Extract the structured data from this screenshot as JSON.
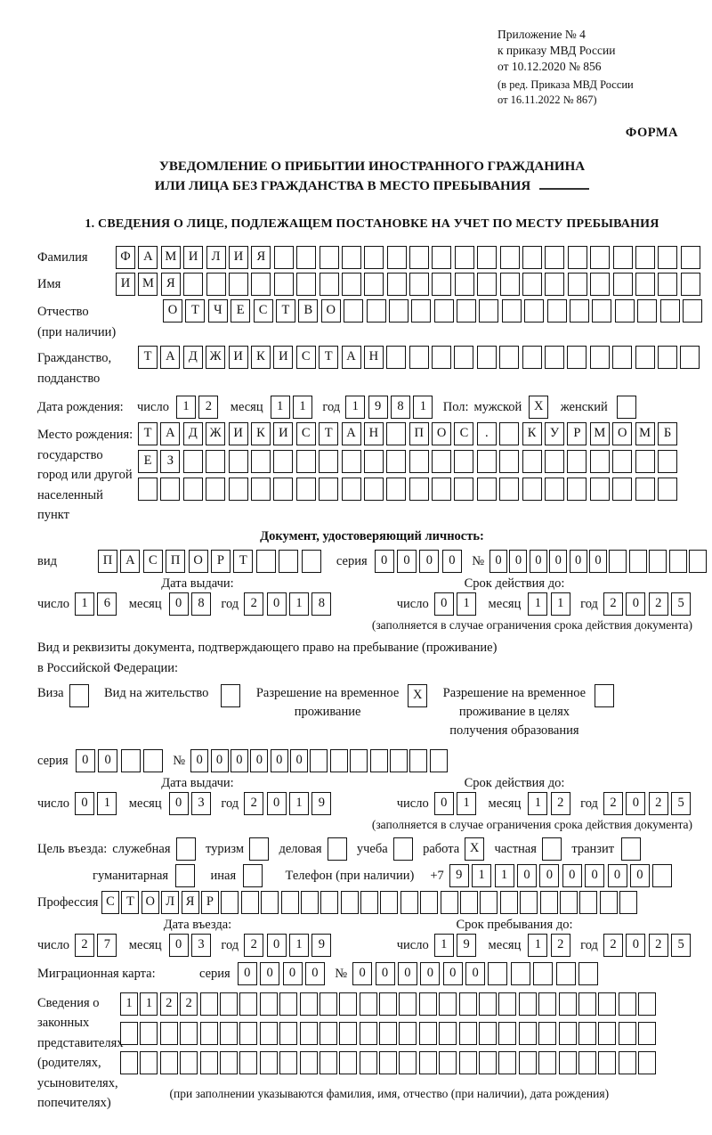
{
  "header": {
    "appendix": [
      "Приложение № 4",
      "к приказу МВД России",
      "от 10.12.2020 № 856"
    ],
    "amendment": [
      "(в ред. Приказа МВД России",
      "от 16.11.2022 № 867)"
    ],
    "form_label": "ФОРМА"
  },
  "title": {
    "line1": "УВЕДОМЛЕНИЕ О ПРИБЫТИИ ИНОСТРАННОГО ГРАЖДАНИНА",
    "line2": "ИЛИ ЛИЦА БЕЗ ГРАЖДАНСТВА В МЕСТО ПРЕБЫВАНИЯ"
  },
  "section1": {
    "heading": "1. СВЕДЕНИЯ О ЛИЦЕ, ПОДЛЕЖАЩЕМ ПОСТАНОВКЕ НА УЧЕТ ПО МЕСТУ ПРЕБЫВАНИЯ"
  },
  "date_labels": {
    "day": "число",
    "month": "месяц",
    "year": "год"
  },
  "person": {
    "surname": {
      "label": "Фамилия",
      "cells": {
        "v": "ФАМИЛИЯ",
        "n": 26
      }
    },
    "name": {
      "label": "Имя",
      "cells": {
        "v": "ИМЯ",
        "n": 26
      }
    },
    "patronymic": {
      "label1": "Отчество",
      "label2": "(при наличии)",
      "cells": {
        "v": "ОТЧЕСТВО",
        "n": 24
      }
    },
    "citizenship": {
      "label1": "Гражданство,",
      "label2": "подданство",
      "cells": {
        "v": "ТАДЖИКИСТАН",
        "n": 25
      }
    },
    "birth_date": {
      "label": "Дата рождения:",
      "day": {
        "v": "12",
        "n": 2
      },
      "month": {
        "v": "11",
        "n": 2
      },
      "year": {
        "v": "1981",
        "n": 4
      }
    },
    "sex": {
      "label": "Пол:",
      "male_label": "мужской",
      "male": {
        "v": "X",
        "n": 1
      },
      "female_label": "женский",
      "female": {
        "v": "",
        "n": 1
      }
    },
    "birth_place": {
      "label_lines": [
        "Место рождения:",
        "государство",
        "город или другой",
        "населенный пункт"
      ],
      "row1": {
        "v": "ТАДЖИКИСТАН ПОС. КУРМОМБ",
        "n": 24
      },
      "row2": {
        "v": "ЕЗ",
        "n": 24
      },
      "row3": {
        "v": "",
        "n": 24
      }
    }
  },
  "identity_doc": {
    "heading": "Документ, удостоверяющий личность:",
    "kind": {
      "label": "вид",
      "cells": {
        "v": "ПАСПОРТ",
        "n": 10
      }
    },
    "series": {
      "label": "серия",
      "cells": {
        "v": "0000",
        "n": 4
      }
    },
    "number": {
      "label": "№",
      "cells": {
        "v": "000000",
        "n": 11
      }
    },
    "issue": {
      "heading": "Дата выдачи:",
      "day": {
        "v": "16",
        "n": 2
      },
      "month": {
        "v": "08",
        "n": 2
      },
      "year": {
        "v": "2018",
        "n": 4
      }
    },
    "valid": {
      "heading": "Срок действия до:",
      "day": {
        "v": "01",
        "n": 2
      },
      "month": {
        "v": "11",
        "n": 2
      },
      "year": {
        "v": "2025",
        "n": 4
      }
    },
    "note": "(заполняется в случае ограничения срока действия документа)"
  },
  "residence_doc": {
    "intro1": "Вид и реквизиты документа, подтверждающего право на пребывание (проживание)",
    "intro2": "в Российской Федерации:",
    "options": [
      {
        "label_lines": [
          "Виза"
        ],
        "box": {
          "v": "",
          "n": 1
        }
      },
      {
        "label_lines": [
          "Вид на жительство"
        ],
        "box": {
          "v": "",
          "n": 1
        }
      },
      {
        "label_lines": [
          "Разрешение на временное",
          "проживание"
        ],
        "box": {
          "v": "X",
          "n": 1
        }
      },
      {
        "label_lines": [
          "Разрешение на временное",
          "проживание в целях",
          "получения образования"
        ],
        "box": {
          "v": "",
          "n": 1
        }
      }
    ],
    "series": {
      "label": "серия",
      "cells": {
        "v": "00",
        "n": 4
      }
    },
    "number": {
      "label": "№",
      "cells": {
        "v": "000000",
        "n": 13
      }
    },
    "issue": {
      "heading": "Дата выдачи:",
      "day": {
        "v": "01",
        "n": 2
      },
      "month": {
        "v": "03",
        "n": 2
      },
      "year": {
        "v": "2019",
        "n": 4
      }
    },
    "valid": {
      "heading": "Срок действия до:",
      "day": {
        "v": "01",
        "n": 2
      },
      "month": {
        "v": "12",
        "n": 2
      },
      "year": {
        "v": "2025",
        "n": 4
      }
    },
    "note": "(заполняется в случае ограничения срока действия документа)"
  },
  "visit": {
    "purpose_label": "Цель въезда:",
    "purposes": [
      {
        "label": "служебная",
        "box": {
          "v": "",
          "n": 1
        }
      },
      {
        "label": "туризм",
        "box": {
          "v": "",
          "n": 1
        }
      },
      {
        "label": "деловая",
        "box": {
          "v": "",
          "n": 1
        }
      },
      {
        "label": "учеба",
        "box": {
          "v": "",
          "n": 1
        }
      },
      {
        "label": "работа",
        "box": {
          "v": "X",
          "n": 1
        }
      },
      {
        "label": "частная",
        "box": {
          "v": "",
          "n": 1
        }
      },
      {
        "label": "транзит",
        "box": {
          "v": "",
          "n": 1
        }
      },
      {
        "label": "гуманитарная",
        "box": {
          "v": "",
          "n": 1
        }
      },
      {
        "label": "иная",
        "box": {
          "v": "",
          "n": 1
        }
      }
    ],
    "phone_label": "Телефон (при наличии)",
    "phone_prefix": "+7",
    "phone": {
      "v": "911000000",
      "n": 10
    },
    "profession": {
      "label": "Профессия",
      "cells": {
        "v": "СТОЛЯР",
        "n": 27
      }
    },
    "entry": {
      "heading": "Дата въезда:",
      "day": {
        "v": "27",
        "n": 2
      },
      "month": {
        "v": "03",
        "n": 2
      },
      "year": {
        "v": "2019",
        "n": 4
      }
    },
    "stay": {
      "heading": "Срок пребывания до:",
      "day": {
        "v": "19",
        "n": 2
      },
      "month": {
        "v": "12",
        "n": 2
      },
      "year": {
        "v": "2025",
        "n": 4
      }
    },
    "migration_card": {
      "label": "Миграционная карта:",
      "series_label": "серия",
      "series": {
        "v": "0000",
        "n": 4
      },
      "number_label": "№",
      "number": {
        "v": "000000",
        "n": 11
      }
    }
  },
  "representatives": {
    "label_lines": [
      "Сведения о",
      "законных",
      "представителях",
      "(родителях,",
      "усыновителях,",
      "попечителях)"
    ],
    "row1": {
      "v": "1122",
      "n": 27
    },
    "row2": {
      "v": "",
      "n": 27
    },
    "row3": {
      "v": "",
      "n": 27
    },
    "note": "(при заполнении указываются фамилия, имя, отчество (при наличии), дата рождения)"
  }
}
